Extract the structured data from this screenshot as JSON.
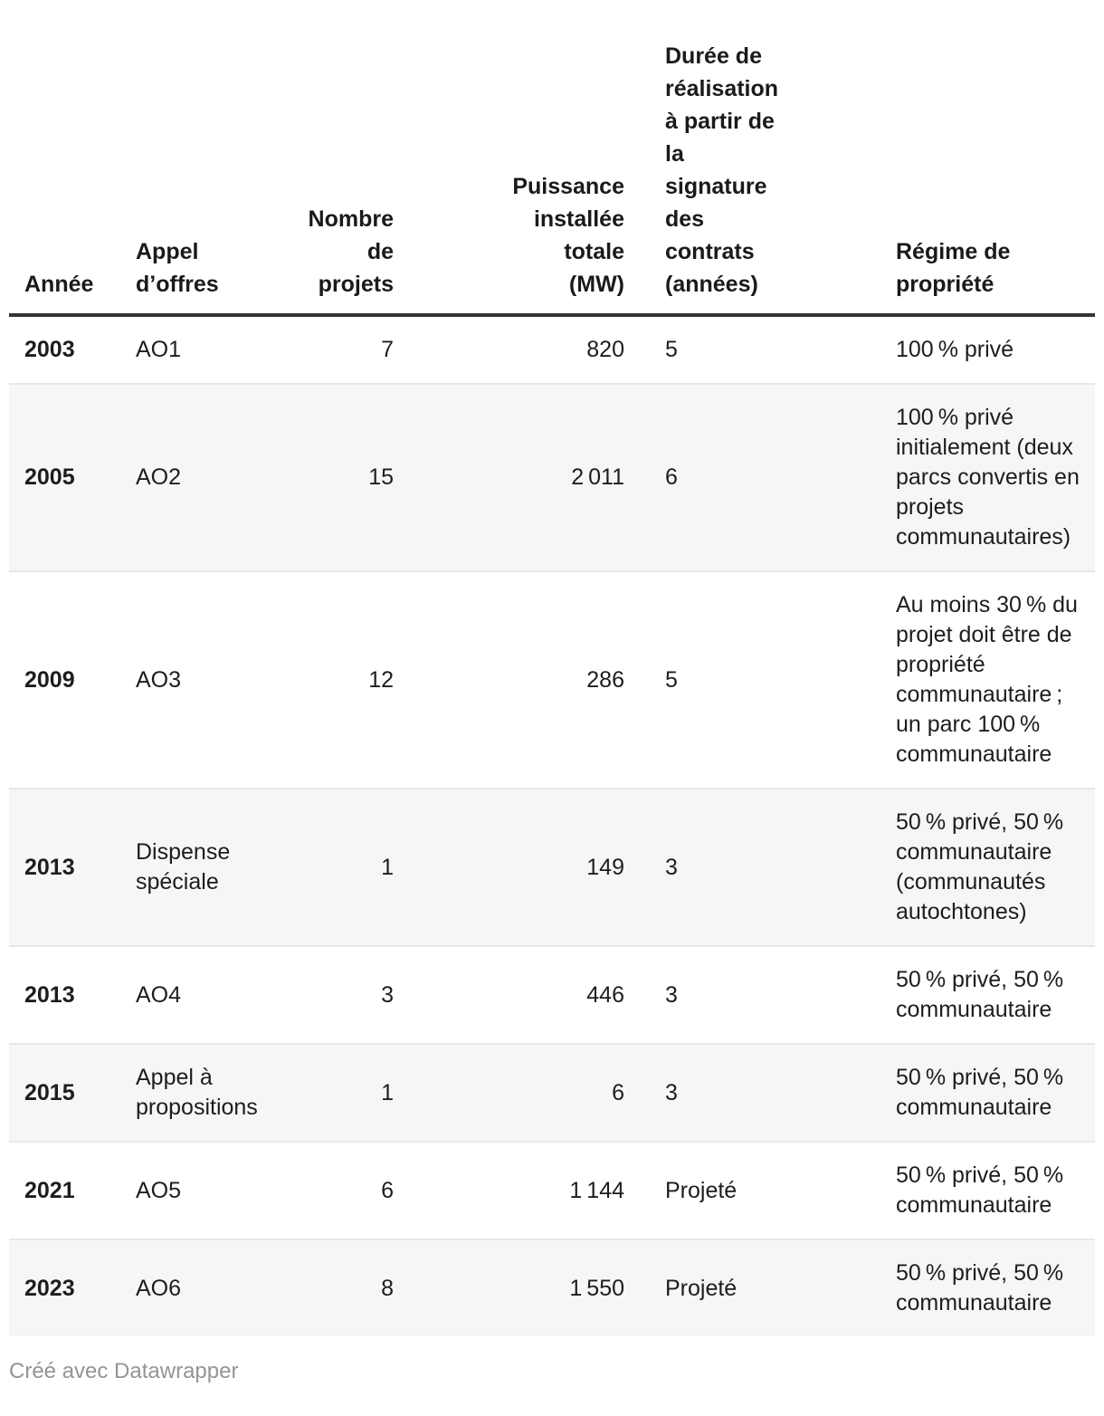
{
  "table": {
    "columns": [
      {
        "id": "annee",
        "label": "Année"
      },
      {
        "id": "appel",
        "label": "Appel\nd’offres"
      },
      {
        "id": "nombre",
        "label": "Nombre\nde\nprojets"
      },
      {
        "id": "puissance",
        "label": "Puissance\ninstallée\ntotale\n(MW)"
      },
      {
        "id": "duree",
        "label": "Durée de\nréalisation\nà partir de\nla\nsignature\ndes\ncontrats\n(années)"
      },
      {
        "id": "regime",
        "label": "Régime de\npropriété"
      }
    ],
    "rows": [
      {
        "annee": "2003",
        "appel": "AO1",
        "nombre": "7",
        "puissance": "820",
        "duree": "5",
        "regime": "100 % privé"
      },
      {
        "annee": "2005",
        "appel": "AO2",
        "nombre": "15",
        "puissance": "2 011",
        "duree": "6",
        "regime": "100 % privé initialement (deux parcs convertis en projets communautaires)"
      },
      {
        "annee": "2009",
        "appel": "AO3",
        "nombre": "12",
        "puissance": "286",
        "duree": "5",
        "regime": "Au moins 30 % du projet doit être de propriété communautaire ; un parc 100 % communautaire"
      },
      {
        "annee": "2013",
        "appel": "Dispense spéciale",
        "nombre": "1",
        "puissance": "149",
        "duree": "3",
        "regime": "50 % privé, 50 % communautaire (communautés autochtones)"
      },
      {
        "annee": "2013",
        "appel": "AO4",
        "nombre": "3",
        "puissance": "446",
        "duree": "3",
        "regime": "50 % privé, 50 % communautaire"
      },
      {
        "annee": "2015",
        "appel": "Appel à propositions",
        "nombre": "1",
        "puissance": "6",
        "duree": "3",
        "regime": "50 % privé, 50 % communautaire"
      },
      {
        "annee": "2021",
        "appel": "AO5",
        "nombre": "6",
        "puissance": "1 144",
        "duree": "Projeté",
        "regime": "50 % privé, 50 % communautaire"
      },
      {
        "annee": "2023",
        "appel": "AO6",
        "nombre": "8",
        "puissance": "1 550",
        "duree": "Projeté",
        "regime": "50 % privé, 50 % communautaire"
      }
    ]
  },
  "footer": {
    "credit": "Créé avec Datawrapper"
  },
  "colors": {
    "text": "#1d1d1d",
    "header_border": "#333333",
    "row_stripe": "#f6f6f6",
    "row_divider": "#e8e8e8",
    "credit_text": "#949494"
  },
  "chart_data": {
    "type": "table",
    "title": "",
    "columns": [
      "Année",
      "Appel d’offres",
      "Nombre de projets",
      "Puissance installée totale (MW)",
      "Durée de réalisation à partir de la signature des contrats (années)",
      "Régime de propriété"
    ],
    "rows": [
      [
        "2003",
        "AO1",
        7,
        820,
        "5",
        "100 % privé"
      ],
      [
        "2005",
        "AO2",
        15,
        2011,
        "6",
        "100 % privé initialement (deux parcs convertis en projets communautaires)"
      ],
      [
        "2009",
        "AO3",
        12,
        286,
        "5",
        "Au moins 30 % du projet doit être de propriété communautaire ; un parc 100 % communautaire"
      ],
      [
        "2013",
        "Dispense spéciale",
        1,
        149,
        "3",
        "50 % privé, 50 % communautaire (communautés autochtones)"
      ],
      [
        "2013",
        "AO4",
        3,
        446,
        "3",
        "50 % privé, 50 % communautaire"
      ],
      [
        "2015",
        "Appel à propositions",
        1,
        6,
        "3",
        "50 % privé, 50 % communautaire"
      ],
      [
        "2021",
        "AO5",
        6,
        1144,
        "Projeté",
        "50 % privé, 50 % communautaire"
      ],
      [
        "2023",
        "AO6",
        8,
        1550,
        "Projeté",
        "50 % privé, 50 % communautaire"
      ]
    ],
    "layout_hints": {
      "striped_rows": true,
      "header_bottom_aligned": true,
      "numeric_columns_right_aligned": true
    }
  }
}
